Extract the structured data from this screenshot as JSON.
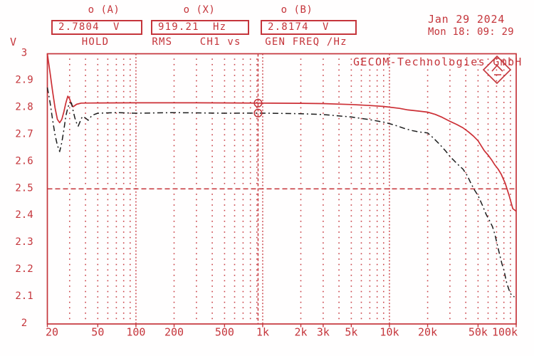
{
  "header": {
    "cursor_a": {
      "label": "o (A)",
      "value": "2.7804  V",
      "mode": "HOLD"
    },
    "cursor_x": {
      "label": "o (X)",
      "value": "919.21  Hz",
      "mode": "RMS    CH1 vs"
    },
    "cursor_b": {
      "label": "o (B)",
      "value": "2.8174  V",
      "mode": "GEN FREQ /Hz"
    },
    "date_line1": "Jan 29 2024",
    "date_line2": "Mon 18: 09: 29"
  },
  "plot": {
    "brand": "GECOM-Technologies GmbH",
    "y_unit": "V"
  },
  "colors": {
    "accent": "#c5353b",
    "trace_red": "#cc2f35",
    "trace_black": "#1c1c1c"
  },
  "chart_data": {
    "type": "line",
    "title": "RMS CH1 vs GEN FREQ /Hz",
    "x_axis": {
      "scale": "log",
      "unit": "Hz",
      "min": 20,
      "max": 100000,
      "tick_labels": [
        "20",
        "50",
        "100",
        "200",
        "500",
        "1k",
        "2k",
        "3k",
        "5k",
        "10k",
        "20k",
        "50k",
        "100k"
      ],
      "tick_values": [
        20,
        50,
        100,
        200,
        500,
        1000,
        2000,
        3000,
        5000,
        10000,
        20000,
        50000,
        100000
      ]
    },
    "y_axis": {
      "unit": "V",
      "min": 2,
      "max": 3,
      "step": 0.1,
      "tick_labels": [
        "3",
        "2.9",
        "2.8",
        "2.7",
        "2.6",
        "2.5",
        "2.4",
        "2.3",
        "2.2",
        "2.1",
        "2"
      ]
    },
    "grid": {
      "style": "dotted",
      "minor_y_step": 0.02,
      "decade_lines": [
        100,
        1000,
        10000
      ]
    },
    "reference_line_v": 2.5,
    "cursor": {
      "freq": 919.21,
      "a_value": 2.7804,
      "b_value": 2.8174
    },
    "series": [
      {
        "name": "trace B (solid red)",
        "color": "#cc2f35",
        "dash": "",
        "width": 1.7,
        "points": [
          [
            20,
            3.0
          ],
          [
            21,
            2.93
          ],
          [
            22,
            2.86
          ],
          [
            23,
            2.8
          ],
          [
            24,
            2.757
          ],
          [
            25,
            2.745
          ],
          [
            26,
            2.757
          ],
          [
            27,
            2.785
          ],
          [
            28,
            2.818
          ],
          [
            29,
            2.843
          ],
          [
            30,
            2.833
          ],
          [
            31,
            2.812
          ],
          [
            32,
            2.804
          ],
          [
            34,
            2.813
          ],
          [
            37,
            2.8174
          ],
          [
            50,
            2.818
          ],
          [
            100,
            2.8185
          ],
          [
            300,
            2.8185
          ],
          [
            600,
            2.818
          ],
          [
            919.21,
            2.8174
          ],
          [
            2000,
            2.8165
          ],
          [
            3000,
            2.8155
          ],
          [
            5000,
            2.812
          ],
          [
            7000,
            2.8085
          ],
          [
            9000,
            2.805
          ],
          [
            12000,
            2.798
          ],
          [
            14000,
            2.792
          ],
          [
            17000,
            2.788
          ],
          [
            20000,
            2.784
          ],
          [
            23000,
            2.7755
          ],
          [
            26000,
            2.765
          ],
          [
            30000,
            2.75
          ],
          [
            34000,
            2.738
          ],
          [
            38000,
            2.726
          ],
          [
            42000,
            2.711
          ],
          [
            46000,
            2.695
          ],
          [
            50000,
            2.678
          ],
          [
            56000,
            2.641
          ],
          [
            60000,
            2.625
          ],
          [
            64000,
            2.607
          ],
          [
            68000,
            2.588
          ],
          [
            72000,
            2.573
          ],
          [
            76000,
            2.555
          ],
          [
            82000,
            2.52
          ],
          [
            88000,
            2.475
          ],
          [
            94000,
            2.427
          ],
          [
            100000,
            2.417
          ]
        ]
      },
      {
        "name": "trace A (dashed black)",
        "color": "#1c1c1c",
        "dash": "8 4 2 4",
        "width": 1.5,
        "points": [
          [
            20,
            2.875
          ],
          [
            21,
            2.82
          ],
          [
            22,
            2.755
          ],
          [
            23,
            2.7
          ],
          [
            24,
            2.661
          ],
          [
            25,
            2.638
          ],
          [
            26,
            2.672
          ],
          [
            27,
            2.718
          ],
          [
            28,
            2.77
          ],
          [
            29,
            2.8
          ],
          [
            30,
            2.818
          ],
          [
            31,
            2.818
          ],
          [
            32,
            2.788
          ],
          [
            33,
            2.762
          ],
          [
            34,
            2.744
          ],
          [
            35,
            2.732
          ],
          [
            36,
            2.745
          ],
          [
            37,
            2.76
          ],
          [
            38,
            2.768
          ],
          [
            40,
            2.762
          ],
          [
            42,
            2.754
          ],
          [
            45,
            2.772
          ],
          [
            50,
            2.78
          ],
          [
            70,
            2.782
          ],
          [
            100,
            2.78
          ],
          [
            200,
            2.782
          ],
          [
            500,
            2.78
          ],
          [
            919.21,
            2.7804
          ],
          [
            2000,
            2.778
          ],
          [
            3000,
            2.775
          ],
          [
            5000,
            2.766
          ],
          [
            7000,
            2.756
          ],
          [
            9000,
            2.747
          ],
          [
            11000,
            2.736
          ],
          [
            13000,
            2.724
          ],
          [
            15000,
            2.716
          ],
          [
            17000,
            2.711
          ],
          [
            20000,
            2.707
          ],
          [
            22000,
            2.69
          ],
          [
            25000,
            2.664
          ],
          [
            28000,
            2.638
          ],
          [
            30000,
            2.62
          ],
          [
            34000,
            2.594
          ],
          [
            38000,
            2.573
          ],
          [
            41000,
            2.55
          ],
          [
            44000,
            2.52
          ],
          [
            47000,
            2.495
          ],
          [
            50000,
            2.475
          ],
          [
            54000,
            2.44
          ],
          [
            58000,
            2.405
          ],
          [
            62000,
            2.38
          ],
          [
            65000,
            2.36
          ],
          [
            68000,
            2.33
          ],
          [
            72000,
            2.28
          ],
          [
            77000,
            2.224
          ],
          [
            80000,
            2.2
          ],
          [
            84000,
            2.153
          ],
          [
            88000,
            2.125
          ],
          [
            92000,
            2.105
          ],
          [
            97000,
            2.1
          ]
        ]
      }
    ]
  }
}
